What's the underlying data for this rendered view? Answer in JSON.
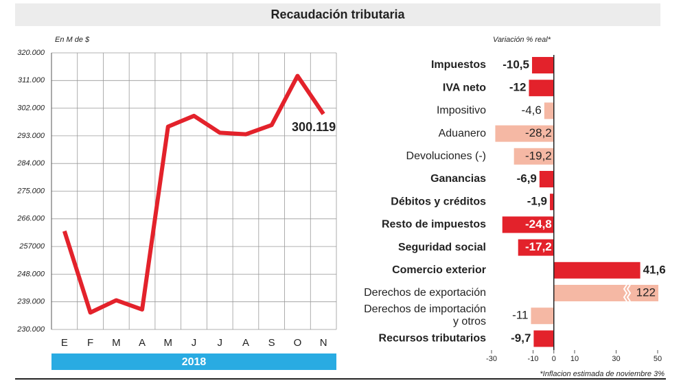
{
  "title": "Recaudación tributaria",
  "chart_data": [
    {
      "type": "line",
      "ylabel": "En M de $",
      "categories": [
        "E",
        "F",
        "M",
        "A",
        "M",
        "J",
        "J",
        "A",
        "S",
        "O",
        "N"
      ],
      "xgroup": "2018",
      "values": [
        262000,
        235500,
        239500,
        236500,
        296000,
        299500,
        294000,
        293500,
        296500,
        312500,
        300119
      ],
      "value_labels": [
        null,
        null,
        null,
        null,
        null,
        null,
        null,
        null,
        null,
        null,
        "300.119"
      ],
      "color": "#e3222b",
      "ylim": [
        230000,
        320000
      ],
      "yticks": [
        {
          "value": 230000,
          "label": "230.000"
        },
        {
          "value": 239000,
          "label": "239.000"
        },
        {
          "value": 248000,
          "label": "248.000"
        },
        {
          "value": 257000,
          "label": "257000"
        },
        {
          "value": 266000,
          "label": "266.000"
        },
        {
          "value": 275000,
          "label": "275.000"
        },
        {
          "value": 284000,
          "label": "284.000"
        },
        {
          "value": 293000,
          "label": "293.000"
        },
        {
          "value": 302000,
          "label": "302.000"
        },
        {
          "value": 311000,
          "label": "311.000"
        },
        {
          "value": 320000,
          "label": "320.000"
        }
      ],
      "grid": true
    },
    {
      "type": "hbar",
      "xlabel": "Variación % real*",
      "categories": [
        "Impuestos",
        "IVA neto",
        "Impositivo",
        "Aduanero",
        "Devoluciones (-)",
        "Ganancias",
        "Débitos y créditos",
        "Resto de impuestos",
        "Seguridad social",
        "Comercio exterior",
        "Derechos de exportación",
        "Derechos de importación\ny otros",
        "Recursos tributarios"
      ],
      "bold": [
        true,
        true,
        false,
        false,
        false,
        true,
        true,
        true,
        true,
        true,
        false,
        false,
        true
      ],
      "values": [
        -10.5,
        -12,
        -4.6,
        -28.2,
        -19.2,
        -6.9,
        -1.9,
        -24.8,
        -17.2,
        41.6,
        122,
        -11,
        -9.7
      ],
      "value_labels": [
        "-10,5",
        "-12",
        "-4,6",
        "-28,2",
        "-19,2",
        "-6,9",
        "-1,9",
        "-24,8",
        "-17,2",
        "41,6",
        "122",
        "-11",
        "-9,7"
      ],
      "colors": [
        "#e3222b",
        "#e3222b",
        "#f5b8a4",
        "#f5b8a4",
        "#f5b8a4",
        "#e3222b",
        "#e3222b",
        "#e3222b",
        "#e3222b",
        "#e3222b",
        "#f5b8a4",
        "#f5b8a4",
        "#e3222b"
      ],
      "xlim": [
        -30,
        50
      ],
      "xticks": [
        -30,
        -10,
        0,
        10,
        30,
        50
      ],
      "footnote": "*Inflacion estimada de noviembre 3%"
    }
  ]
}
